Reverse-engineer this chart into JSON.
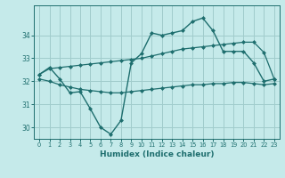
{
  "xlabel": "Humidex (Indice chaleur)",
  "bg_color": "#c5eaea",
  "grid_color": "#a0cccc",
  "line_color": "#1e6e6e",
  "xlim": [
    -0.5,
    23.5
  ],
  "ylim": [
    29.5,
    35.3
  ],
  "yticks": [
    30,
    31,
    32,
    33,
    34
  ],
  "xticks": [
    0,
    1,
    2,
    3,
    4,
    5,
    6,
    7,
    8,
    9,
    10,
    11,
    12,
    13,
    14,
    15,
    16,
    17,
    18,
    19,
    20,
    21,
    22,
    23
  ],
  "main_y": [
    32.3,
    32.6,
    32.1,
    31.5,
    31.55,
    30.8,
    30.0,
    29.7,
    30.3,
    32.8,
    33.2,
    34.1,
    34.0,
    34.1,
    34.2,
    34.6,
    34.75,
    34.2,
    33.3,
    33.3,
    33.3,
    32.8,
    32.0,
    32.1
  ],
  "upper_y": [
    32.3,
    32.55,
    32.6,
    32.65,
    32.7,
    32.75,
    32.8,
    32.85,
    32.9,
    32.95,
    33.0,
    33.1,
    33.2,
    33.3,
    33.4,
    33.45,
    33.5,
    33.55,
    33.6,
    33.65,
    33.7,
    33.7,
    33.25,
    32.1
  ],
  "lower_y": [
    32.1,
    32.0,
    31.85,
    31.75,
    31.65,
    31.6,
    31.55,
    31.5,
    31.5,
    31.55,
    31.6,
    31.65,
    31.7,
    31.75,
    31.8,
    31.85,
    31.85,
    31.9,
    31.9,
    31.95,
    31.95,
    31.9,
    31.85,
    31.9
  ]
}
